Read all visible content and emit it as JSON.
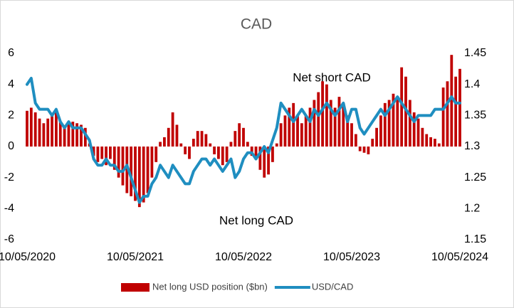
{
  "chart_data": {
    "type": "bar",
    "title": "CAD",
    "annotations": [
      "Net short CAD",
      "Net long CAD"
    ],
    "categories": [
      "10/05/2020",
      null,
      null,
      null,
      null,
      null,
      null,
      null,
      null,
      null,
      null,
      null,
      null,
      null,
      null,
      null,
      null,
      null,
      null,
      null,
      null,
      null,
      null,
      null,
      null,
      null,
      "10/05/2021",
      null,
      null,
      null,
      null,
      null,
      null,
      null,
      null,
      null,
      null,
      null,
      null,
      null,
      null,
      null,
      null,
      null,
      null,
      null,
      null,
      null,
      null,
      null,
      null,
      null,
      "10/05/2022",
      null,
      null,
      null,
      null,
      null,
      null,
      null,
      null,
      null,
      null,
      null,
      null,
      null,
      null,
      null,
      null,
      null,
      null,
      null,
      null,
      null,
      null,
      null,
      null,
      null,
      "10/05/2023",
      null,
      null,
      null,
      null,
      null,
      null,
      null,
      null,
      null,
      null,
      null,
      null,
      null,
      null,
      null,
      null,
      null,
      null,
      null,
      null,
      null,
      null,
      null,
      null,
      null,
      "10/05/2024"
    ],
    "series": [
      {
        "name": "Net long USD position ($bn)",
        "type": "bar",
        "color": "#c00000",
        "values": [
          2.3,
          2.5,
          2.2,
          1.8,
          1.5,
          1.8,
          2.0,
          2.3,
          1.6,
          1.2,
          1.5,
          1.6,
          1.5,
          1.4,
          1.2,
          0.2,
          -0.6,
          -1.0,
          -0.8,
          -1.2,
          -0.8,
          -1.5,
          -2.0,
          -2.5,
          -3.0,
          -3.2,
          -3.5,
          -3.9,
          -3.6,
          -3.0,
          -2.0,
          -1.0,
          0.3,
          0.6,
          1.2,
          2.2,
          1.4,
          0.2,
          -0.5,
          -0.8,
          0.5,
          1.0,
          1.0,
          0.8,
          0.2,
          -0.5,
          -0.8,
          -1.2,
          -1.0,
          0.3,
          1.0,
          1.5,
          1.2,
          0.3,
          -0.6,
          -0.8,
          -1.5,
          -2.0,
          -1.8,
          -1.0,
          0.2,
          1.5,
          2.0,
          2.5,
          2.8,
          2.0,
          1.5,
          2.0,
          2.5,
          3.0,
          3.5,
          4.2,
          4.0,
          3.0,
          2.5,
          3.2,
          2.8,
          2.0,
          1.5,
          0.8,
          -0.3,
          -0.4,
          -0.5,
          0.5,
          1.2,
          2.0,
          2.8,
          3.0,
          3.4,
          3.2,
          5.1,
          4.5,
          3.0,
          2.2,
          1.8,
          1.2,
          0.8,
          0.6,
          0.5,
          0.2,
          3.8,
          4.2,
          5.9,
          4.5,
          5.0
        ]
      },
      {
        "name": "USD/CAD",
        "type": "line",
        "axis": "y2",
        "color": "#1f8ec0",
        "values": [
          1.4,
          1.41,
          1.37,
          1.36,
          1.36,
          1.36,
          1.35,
          1.36,
          1.34,
          1.33,
          1.34,
          1.33,
          1.33,
          1.33,
          1.32,
          1.31,
          1.28,
          1.27,
          1.27,
          1.28,
          1.27,
          1.27,
          1.26,
          1.26,
          1.27,
          1.25,
          1.23,
          1.21,
          1.22,
          1.22,
          1.24,
          1.25,
          1.27,
          1.26,
          1.25,
          1.27,
          1.26,
          1.25,
          1.24,
          1.24,
          1.26,
          1.27,
          1.28,
          1.28,
          1.27,
          1.28,
          1.27,
          1.26,
          1.27,
          1.28,
          1.25,
          1.26,
          1.28,
          1.29,
          1.29,
          1.28,
          1.29,
          1.3,
          1.29,
          1.31,
          1.33,
          1.37,
          1.36,
          1.35,
          1.34,
          1.35,
          1.36,
          1.35,
          1.34,
          1.36,
          1.35,
          1.36,
          1.37,
          1.36,
          1.35,
          1.36,
          1.37,
          1.34,
          1.36,
          1.36,
          1.33,
          1.32,
          1.33,
          1.34,
          1.35,
          1.36,
          1.35,
          1.36,
          1.37,
          1.38,
          1.37,
          1.36,
          1.35,
          1.34,
          1.35,
          1.35,
          1.35,
          1.35,
          1.36,
          1.36,
          1.36,
          1.37,
          1.38,
          1.37,
          1.37
        ]
      }
    ],
    "ylim": [
      -6,
      6
    ],
    "yticks": [
      -6,
      -4,
      -2,
      0,
      2,
      4,
      6
    ],
    "y2lim": [
      1.15,
      1.45
    ],
    "y2ticks": [
      1.15,
      1.2,
      1.25,
      1.3,
      1.35,
      1.4,
      1.45
    ],
    "grid": false,
    "legend": "bottom"
  }
}
